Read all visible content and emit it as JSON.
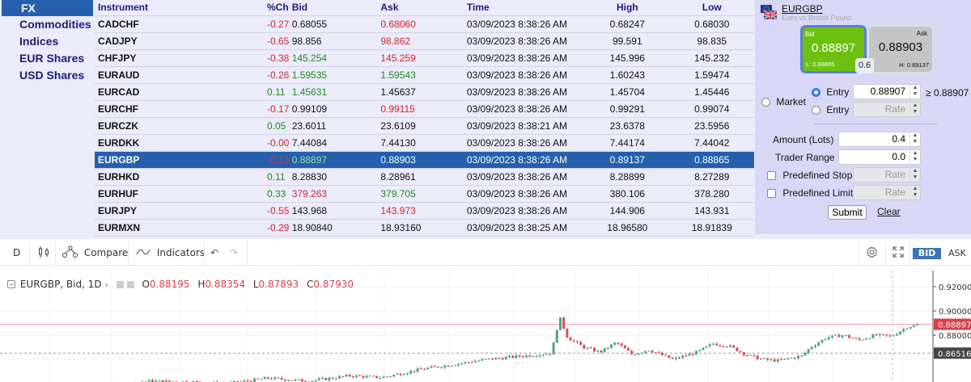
{
  "categories": [
    {
      "label": "FX",
      "active": true
    },
    {
      "label": "Commodities",
      "active": false
    },
    {
      "label": "Indices",
      "active": false
    },
    {
      "label": "EUR Shares",
      "active": false
    },
    {
      "label": "USD Shares",
      "active": false
    }
  ],
  "quotes": {
    "headers": {
      "instrument": "Instrument",
      "change": "%Ch",
      "bid": "Bid",
      "ask": "Ask",
      "time": "Time",
      "high": "High",
      "low": "Low"
    },
    "rows": [
      {
        "instrument": "CADCHF",
        "change": "-0.27",
        "ch_dir": "neg",
        "bid": "0.68055",
        "bid_dir": "",
        "ask": "0.68060",
        "ask_dir": "neg",
        "time": "03/09/2023 8:38:26 AM",
        "high": "0.68247",
        "low": "0.68030",
        "selected": false
      },
      {
        "instrument": "CADJPY",
        "change": "-0.65",
        "ch_dir": "neg",
        "bid": "98.856",
        "bid_dir": "",
        "ask": "98.862",
        "ask_dir": "neg",
        "time": "03/09/2023 8:38:26 AM",
        "high": "99.591",
        "low": "98.835",
        "selected": false
      },
      {
        "instrument": "CHFJPY",
        "change": "-0.38",
        "ch_dir": "neg",
        "bid": "145.254",
        "bid_dir": "pos",
        "ask": "145.259",
        "ask_dir": "neg",
        "time": "03/09/2023 8:38:26 AM",
        "high": "145.996",
        "low": "145.232",
        "selected": false
      },
      {
        "instrument": "EURAUD",
        "change": "-0.26",
        "ch_dir": "neg",
        "bid": "1.59535",
        "bid_dir": "pos",
        "ask": "1.59543",
        "ask_dir": "pos",
        "time": "03/09/2023 8:38:26 AM",
        "high": "1.60243",
        "low": "1.59474",
        "selected": false
      },
      {
        "instrument": "EURCAD",
        "change": "0.11",
        "ch_dir": "pos",
        "bid": "1.45631",
        "bid_dir": "pos",
        "ask": "1.45637",
        "ask_dir": "",
        "time": "03/09/2023 8:38:26 AM",
        "high": "1.45704",
        "low": "1.45446",
        "selected": false
      },
      {
        "instrument": "EURCHF",
        "change": "-0.17",
        "ch_dir": "neg",
        "bid": "0.99109",
        "bid_dir": "",
        "ask": "0.99115",
        "ask_dir": "neg",
        "time": "03/09/2023 8:38:26 AM",
        "high": "0.99291",
        "low": "0.99074",
        "selected": false
      },
      {
        "instrument": "EURCZK",
        "change": "0.05",
        "ch_dir": "pos",
        "bid": "23.6011",
        "bid_dir": "",
        "ask": "23.6109",
        "ask_dir": "",
        "time": "03/09/2023 8:38:21 AM",
        "high": "23.6378",
        "low": "23.5956",
        "selected": false
      },
      {
        "instrument": "EURDKK",
        "change": "-0.00",
        "ch_dir": "neg",
        "bid": "7.44084",
        "bid_dir": "",
        "ask": "7.44130",
        "ask_dir": "",
        "time": "03/09/2023 8:38:26 AM",
        "high": "7.44174",
        "low": "7.44042",
        "selected": false
      },
      {
        "instrument": "EURGBP",
        "change": "-0.13",
        "ch_dir": "neg",
        "bid": "0.88897",
        "bid_dir": "pos",
        "ask": "0.88903",
        "ask_dir": "",
        "time": "03/09/2023 8:38:26 AM",
        "high": "0.89137",
        "low": "0.88865",
        "selected": true
      },
      {
        "instrument": "EURHKD",
        "change": "0.11",
        "ch_dir": "pos",
        "bid": "8.28830",
        "bid_dir": "",
        "ask": "8.28961",
        "ask_dir": "",
        "time": "03/09/2023 8:38:26 AM",
        "high": "8.28899",
        "low": "8.27289",
        "selected": false
      },
      {
        "instrument": "EURHUF",
        "change": "0.33",
        "ch_dir": "pos",
        "bid": "379.263",
        "bid_dir": "neg",
        "ask": "379.705",
        "ask_dir": "pos",
        "time": "03/09/2023 8:38:26 AM",
        "high": "380.106",
        "low": "378.280",
        "selected": false
      },
      {
        "instrument": "EURJPY",
        "change": "-0.55",
        "ch_dir": "neg",
        "bid": "143.968",
        "bid_dir": "",
        "ask": "143.973",
        "ask_dir": "neg",
        "time": "03/09/2023 8:38:26 AM",
        "high": "144.906",
        "low": "143.931",
        "selected": false
      },
      {
        "instrument": "EURMXN",
        "change": "-0.29",
        "ch_dir": "neg",
        "bid": "18.90840",
        "bid_dir": "",
        "ask": "18.93160",
        "ask_dir": "",
        "time": "03/09/2023 8:38:25 AM",
        "high": "18.96580",
        "low": "18.91839",
        "selected": false
      }
    ]
  },
  "ticket": {
    "symbol": "EURGBP",
    "description": "Euro vs British Pound",
    "bid_label": "Bid",
    "bid": "0.88897",
    "low_label": "L: 0.88865",
    "ask_label": "Ask",
    "ask": "0.88903",
    "high_label": "H: 0.89137",
    "spread": "0.6",
    "market_label": "Market",
    "entry_label": "Entry",
    "entry_value": "0.88907",
    "entry_condition": "≥ 0.88907",
    "entry2_label": "Entry",
    "rate_placeholder": "Rate",
    "amount_label": "Amount (Lots)",
    "amount_value": "0.4",
    "range_label": "Trader Range",
    "range_value": "0.0",
    "stop_label": "Predefined Stop",
    "limit_label": "Predefined Limit",
    "submit_label": "Submit",
    "clear_label": "Clear"
  },
  "toolbar": {
    "interval": "D",
    "compare": "Compare",
    "indicators": "Indicators",
    "bid": "BID",
    "ask": "ASK"
  },
  "legend": {
    "title": "EURGBP, Bid, 1D",
    "o_label": "O",
    "o": "0.88195",
    "h_label": "H",
    "h": "0.88354",
    "l_label": "L",
    "l": "0.87893",
    "c_label": "C",
    "c": "0.87930"
  },
  "colors": {
    "up": "#53a57d",
    "down": "#d3515d",
    "accent": "#2660ad",
    "bid_tile": "#6cc110"
  },
  "chart_data": {
    "type": "candlestick",
    "title": "EURGBP, Bid, 1D",
    "y_ticks": [
      "0.92000",
      "0.90000",
      "0.88000"
    ],
    "current_price_label": "0.88897",
    "crosshair_label": "0.86516",
    "ylim": [
      0.855,
      0.925
    ]
  }
}
